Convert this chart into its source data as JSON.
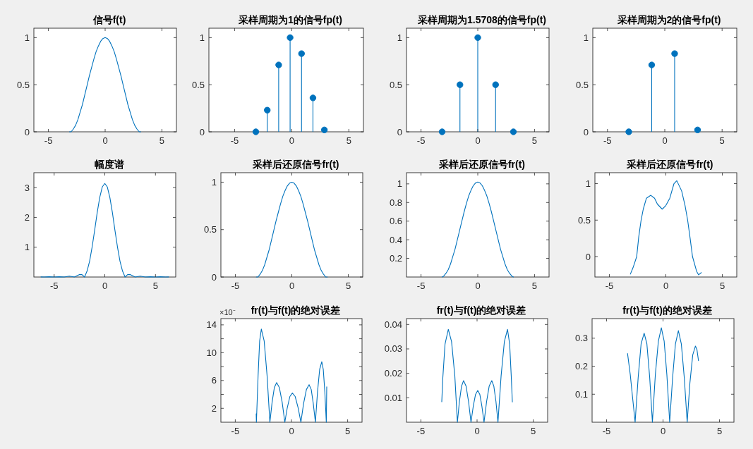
{
  "chart_data": [
    {
      "type": "line",
      "title": "信号f(t)",
      "color": "#0072bd",
      "xlim": [
        -6.28,
        6.28
      ],
      "ylim": [
        0,
        1.1
      ],
      "xticks": [
        -5,
        0,
        5
      ],
      "yticks": [
        0,
        0.5,
        1
      ],
      "x": [
        -3.14,
        -3.0,
        -2.8,
        -2.6,
        -2.4,
        -2.2,
        -2.0,
        -1.8,
        -1.6,
        -1.4,
        -1.2,
        -1.0,
        -0.8,
        -0.6,
        -0.4,
        -0.2,
        0,
        0.2,
        0.4,
        0.6,
        0.8,
        1.0,
        1.2,
        1.4,
        1.6,
        1.8,
        2.0,
        2.2,
        2.4,
        2.6,
        2.8,
        3.0,
        3.14
      ],
      "values": [
        0,
        0,
        0.03,
        0.07,
        0.13,
        0.21,
        0.29,
        0.39,
        0.49,
        0.59,
        0.68,
        0.77,
        0.85,
        0.91,
        0.96,
        0.99,
        1,
        0.99,
        0.96,
        0.91,
        0.85,
        0.77,
        0.68,
        0.59,
        0.49,
        0.39,
        0.29,
        0.21,
        0.13,
        0.07,
        0.03,
        0,
        0
      ]
    },
    {
      "type": "lollipop",
      "title": "采样周期为1的信号fp(t)",
      "color": "#0072bd",
      "marker": "circle",
      "xlim": [
        -7.25,
        6.28
      ],
      "ylim": [
        0,
        1.1
      ],
      "xticks": [
        -5,
        0,
        5
      ],
      "yticks": [
        0,
        0.5,
        1
      ],
      "x": [
        -3.14,
        -2.14,
        -1.14,
        -0.14,
        0.86,
        1.86,
        2.86
      ],
      "values": [
        0,
        0.23,
        0.71,
        1,
        0.83,
        0.36,
        0.02
      ]
    },
    {
      "type": "lollipop",
      "title": "采样周期为1.5708的信号fp(t)",
      "color": "#0072bd",
      "marker": "circle",
      "xlim": [
        -6.28,
        6.28
      ],
      "ylim": [
        0,
        1.1
      ],
      "xticks": [
        -5,
        0,
        5
      ],
      "yticks": [
        0,
        0.5,
        1
      ],
      "x": [
        -3.14,
        -1.57,
        0,
        1.57,
        3.14
      ],
      "values": [
        0,
        0.5,
        1,
        0.5,
        0
      ]
    },
    {
      "type": "lollipop",
      "title": "采样周期为2的信号fp(t)",
      "color": "#0072bd",
      "marker": "circle",
      "xlim": [
        -6.28,
        6.28
      ],
      "ylim": [
        0,
        1.1
      ],
      "xticks": [
        -5,
        0,
        5
      ],
      "yticks": [
        0,
        0.5,
        1
      ],
      "x": [
        -3.14,
        -1.14,
        0.86,
        2.86
      ],
      "values": [
        0,
        0.71,
        0.83,
        0.02
      ]
    },
    {
      "type": "line",
      "title": "幅度谱",
      "color": "#0072bd",
      "xlim": [
        -7,
        7
      ],
      "ylim": [
        0,
        3.5
      ],
      "xticks": [
        -5,
        0,
        5
      ],
      "yticks": [
        1,
        2,
        3
      ],
      "x": [
        -6.3,
        -6,
        -5.5,
        -5,
        -4.5,
        -4,
        -3.5,
        -3,
        -2.75,
        -2.5,
        -2.25,
        -2,
        -1.75,
        -1.5,
        -1.25,
        -1,
        -0.75,
        -0.5,
        -0.25,
        0,
        0.25,
        0.5,
        0.75,
        1,
        1.25,
        1.5,
        1.75,
        2,
        2.25,
        2.5,
        2.75,
        3,
        3.5,
        4,
        4.5,
        5,
        5.5,
        6,
        6.3
      ],
      "values": [
        0.003,
        0,
        0.01,
        0,
        0.01,
        0,
        0.03,
        0,
        0.04,
        0.08,
        0.08,
        0,
        0.2,
        0.53,
        1.01,
        1.57,
        2.16,
        2.67,
        3.02,
        3.14,
        3.02,
        2.67,
        2.16,
        1.57,
        1.01,
        0.53,
        0.2,
        0,
        0.08,
        0.08,
        0.04,
        0,
        0.03,
        0,
        0.01,
        0,
        0.01,
        0,
        0.003
      ]
    },
    {
      "type": "line",
      "title": "采样后还原信号fr(t)",
      "color": "#0072bd",
      "xlim": [
        -6.28,
        6.28
      ],
      "ylim": [
        0,
        1.1
      ],
      "xticks": [
        -5,
        0,
        5
      ],
      "yticks": [
        0,
        0.5,
        1
      ],
      "x": [
        -3.14,
        -3.0,
        -2.8,
        -2.6,
        -2.4,
        -2.2,
        -2.0,
        -1.8,
        -1.6,
        -1.4,
        -1.2,
        -1.0,
        -0.8,
        -0.6,
        -0.4,
        -0.2,
        0,
        0.2,
        0.4,
        0.6,
        0.8,
        1.0,
        1.2,
        1.4,
        1.6,
        1.8,
        2.0,
        2.2,
        2.4,
        2.6,
        2.8,
        3.0,
        3.14
      ],
      "values": [
        0,
        0,
        0.03,
        0.07,
        0.13,
        0.21,
        0.29,
        0.39,
        0.49,
        0.59,
        0.68,
        0.77,
        0.85,
        0.91,
        0.96,
        0.99,
        1,
        0.99,
        0.96,
        0.91,
        0.85,
        0.77,
        0.68,
        0.59,
        0.49,
        0.39,
        0.29,
        0.21,
        0.13,
        0.07,
        0.03,
        0,
        0
      ]
    },
    {
      "type": "line",
      "title": "采样后还原信号fr(t)",
      "color": "#0072bd",
      "xlim": [
        -6.28,
        6.28
      ],
      "ylim": [
        0,
        1.12
      ],
      "xticks": [
        -5,
        0,
        5
      ],
      "yticks": [
        0.2,
        0.4,
        0.6,
        0.8,
        1
      ],
      "x": [
        -3.14,
        -3.0,
        -2.8,
        -2.6,
        -2.4,
        -2.2,
        -2.0,
        -1.8,
        -1.6,
        -1.4,
        -1.2,
        -1.0,
        -0.8,
        -0.6,
        -0.4,
        -0.2,
        0,
        0.2,
        0.4,
        0.6,
        0.8,
        1.0,
        1.2,
        1.4,
        1.6,
        1.8,
        2.0,
        2.2,
        2.4,
        2.6,
        2.8,
        3.0,
        3.14
      ],
      "values": [
        0,
        0.01,
        0.04,
        0.08,
        0.14,
        0.22,
        0.3,
        0.4,
        0.5,
        0.6,
        0.7,
        0.79,
        0.87,
        0.93,
        0.98,
        1.01,
        1.02,
        1.01,
        0.98,
        0.93,
        0.87,
        0.79,
        0.7,
        0.6,
        0.5,
        0.4,
        0.3,
        0.22,
        0.14,
        0.08,
        0.04,
        0.01,
        0
      ]
    },
    {
      "type": "line",
      "title": "采样后还原信号fr(t)",
      "color": "#0072bd",
      "xlim": [
        -6.28,
        6.28
      ],
      "ylim": [
        -0.28,
        1.15
      ],
      "xticks": [
        -5,
        0,
        5
      ],
      "yticks": [
        0,
        0.5,
        1
      ],
      "x": [
        -3.14,
        -2.9,
        -2.58,
        -2.4,
        -2.19,
        -2.0,
        -1.72,
        -1.33,
        -1.0,
        -0.75,
        -0.32,
        0,
        0.35,
        0.72,
        0.97,
        1.4,
        1.7,
        1.93,
        2.15,
        2.36,
        2.72,
        2.9,
        3.14
      ],
      "values": [
        -0.24,
        -0.15,
        0,
        0.27,
        0.5,
        0.65,
        0.8,
        0.84,
        0.8,
        0.72,
        0.65,
        0.7,
        0.8,
        1.0,
        1.04,
        0.9,
        0.7,
        0.5,
        0.25,
        0,
        -0.2,
        -0.25,
        -0.22
      ]
    },
    {
      "type": "line",
      "title": "fr(t)与f(t)的绝对误差",
      "color": "#0072bd",
      "xlim": [
        -6.28,
        6.28
      ],
      "ylim": [
        0,
        14.9
      ],
      "xticks": [
        -5,
        0,
        5
      ],
      "yticks": [
        2,
        {
          "value": 4,
          "label": null
        },
        6,
        {
          "value": 8,
          "label": null
        },
        10,
        {
          "value": 12,
          "label": null
        },
        14
      ],
      "annotations": [
        "×10⁻"
      ],
      "x": [
        -3.14,
        -3.12,
        -2.97,
        -2.83,
        -2.68,
        -2.43,
        -2.17,
        -1.92,
        -1.72,
        -1.52,
        -1.32,
        -1.08,
        -0.83,
        -0.59,
        -0.37,
        -0.14,
        0.08,
        0.33,
        0.59,
        0.84,
        1.08,
        1.33,
        1.57,
        1.76,
        1.94,
        2.13,
        2.32,
        2.51,
        2.7,
        2.83,
        2.97,
        3.1,
        3.14
      ],
      "values": [
        1.2,
        0,
        6.7,
        11.7,
        13.4,
        11.7,
        6.7,
        0,
        2.9,
        5.0,
        5.7,
        5.0,
        2.9,
        0,
        2.1,
        3.7,
        4.2,
        3.7,
        2.1,
        0,
        2.7,
        4.7,
        5.4,
        4.7,
        2.7,
        0,
        4.4,
        7.6,
        8.7,
        7.6,
        4.4,
        0,
        5.1
      ]
    },
    {
      "type": "line",
      "title": "fr(t)与f(t)的绝对误差",
      "color": "#0072bd",
      "xlim": [
        -6.28,
        6.28
      ],
      "ylim": [
        0,
        0.0424
      ],
      "xticks": [
        -5,
        0,
        5
      ],
      "yticks": [
        0.01,
        0.02,
        0.03,
        0.04
      ],
      "x": [
        -3.14,
        -3.05,
        -2.85,
        -2.56,
        -2.27,
        -1.98,
        -1.75,
        -1.57,
        -1.38,
        -1.2,
        -0.98,
        -0.76,
        -0.54,
        -0.34,
        -0.14,
        0.06,
        0.25,
        0.43,
        0.62,
        0.85,
        1.08,
        1.31,
        1.49,
        1.68,
        1.86,
        2.14,
        2.43,
        2.71,
        2.9,
        3.05,
        3.14
      ],
      "values": [
        0.0084,
        0.018,
        0.032,
        0.038,
        0.033,
        0.019,
        0,
        0.0085,
        0.0148,
        0.017,
        0.0148,
        0.0085,
        0,
        0.0065,
        0.0113,
        0.013,
        0.0113,
        0.0065,
        0,
        0.0085,
        0.0148,
        0.017,
        0.0148,
        0.0085,
        0,
        0.019,
        0.033,
        0.038,
        0.032,
        0.018,
        0.0083
      ]
    },
    {
      "type": "line",
      "title": "fr(t)与f(t)的绝对误差",
      "color": "#0072bd",
      "xlim": [
        -6.28,
        6.28
      ],
      "ylim": [
        0,
        0.37
      ],
      "xticks": [
        -5,
        0,
        5
      ],
      "yticks": [
        0.1,
        0.2,
        0.3
      ],
      "x": [
        -3.14,
        -2.9,
        -2.7,
        -2.47,
        -2.2,
        -1.94,
        -1.67,
        -1.43,
        -1.18,
        -0.94,
        -0.68,
        -0.41,
        -0.15,
        0.1,
        0.34,
        0.59,
        0.85,
        1.1,
        1.36,
        1.62,
        1.88,
        2.14,
        2.38,
        2.63,
        2.87,
        3.0,
        3.14
      ],
      "values": [
        0.245,
        0.17,
        0.09,
        0,
        0.16,
        0.28,
        0.318,
        0.28,
        0.16,
        0,
        0.17,
        0.29,
        0.337,
        0.29,
        0.17,
        0,
        0.16,
        0.28,
        0.327,
        0.28,
        0.16,
        0,
        0.14,
        0.24,
        0.272,
        0.26,
        0.22
      ]
    }
  ]
}
